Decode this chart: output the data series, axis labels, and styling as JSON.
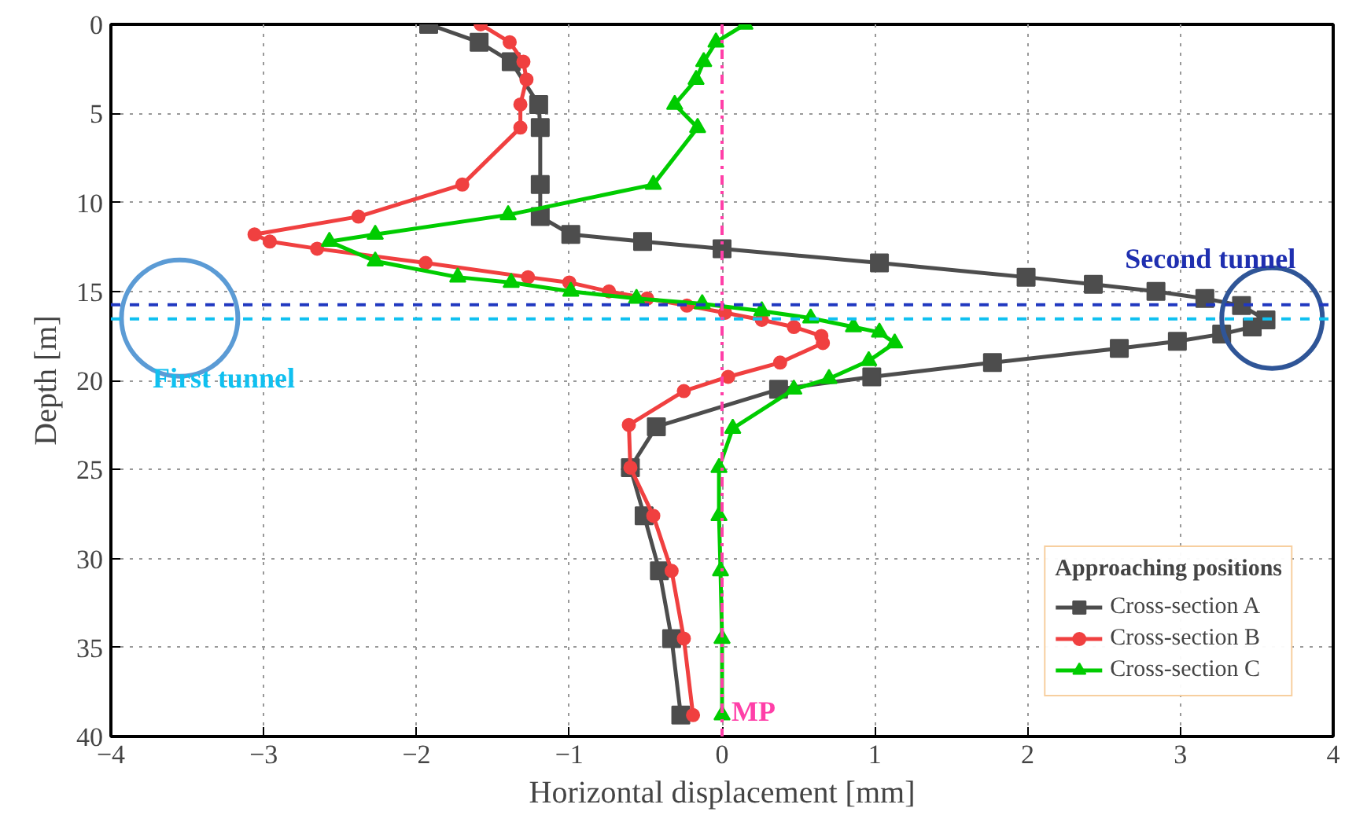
{
  "chart_data": {
    "type": "line",
    "xlabel": "Horizontal displacement [mm]",
    "ylabel": "Depth [m]",
    "legend_title": "Approaching positions",
    "legend": "bottom right",
    "grid": true,
    "line_style": "solid",
    "xlim": [
      -4,
      4
    ],
    "ylim": [
      40,
      0
    ],
    "xticks": [
      -4,
      -3,
      -2,
      -1,
      0,
      1,
      2,
      3,
      4
    ],
    "yticks": [
      0,
      5,
      10,
      15,
      20,
      25,
      30,
      35,
      40
    ],
    "series": [
      {
        "name": "Cross-section A",
        "color": "#4d4d4d",
        "marker": "square",
        "x": [
          -1.92,
          -1.59,
          -1.38,
          -1.2,
          -1.19,
          -1.19,
          -1.19,
          -0.99,
          -0.52,
          0.0,
          1.03,
          1.99,
          2.43,
          2.84,
          3.16,
          3.4,
          3.56,
          3.47,
          3.27,
          2.98,
          2.6,
          1.77,
          0.98,
          0.37,
          -0.43,
          -0.6,
          -0.51,
          -0.41,
          -0.33,
          -0.27
        ],
        "values": [
          0,
          1,
          2.1,
          4.5,
          5.8,
          9,
          10.8,
          11.8,
          12.2,
          12.6,
          13.4,
          14.2,
          14.6,
          15,
          15.4,
          15.8,
          16.6,
          17,
          17.4,
          17.8,
          18.2,
          19,
          19.8,
          20.5,
          22.6,
          24.9,
          27.6,
          30.7,
          34.5,
          38.8
        ]
      },
      {
        "name": "Cross-section B",
        "color": "#f04040",
        "marker": "circle",
        "x": [
          -1.58,
          -1.39,
          -1.3,
          -1.28,
          -1.32,
          -1.32,
          -1.7,
          -2.38,
          -3.06,
          -2.96,
          -2.65,
          -1.94,
          -1.27,
          -1.0,
          -0.74,
          -0.49,
          -0.23,
          0.02,
          0.26,
          0.47,
          0.65,
          0.66,
          0.38,
          0.04,
          -0.25,
          -0.61,
          -0.6,
          -0.45,
          -0.33,
          -0.25,
          -0.19
        ],
        "values": [
          0,
          1,
          2.1,
          3.1,
          4.5,
          5.8,
          9,
          10.8,
          11.8,
          12.2,
          12.6,
          13.4,
          14.2,
          14.5,
          15,
          15.4,
          15.8,
          16.2,
          16.6,
          17,
          17.5,
          17.9,
          19,
          19.8,
          20.6,
          22.5,
          24.9,
          27.6,
          30.7,
          34.5,
          38.8
        ]
      },
      {
        "name": "Cross-section C",
        "color": "#00cc00",
        "marker": "triangle",
        "x": [
          0.15,
          -0.04,
          -0.12,
          -0.17,
          -0.31,
          -0.16,
          -0.45,
          -1.4,
          -2.27,
          -2.57,
          -2.27,
          -1.73,
          -1.38,
          -0.99,
          -0.56,
          -0.13,
          0.26,
          0.58,
          0.86,
          1.03,
          1.13,
          0.96,
          0.7,
          0.47,
          0.07,
          -0.02,
          -0.02,
          -0.01,
          0.0,
          0.0
        ],
        "values": [
          0,
          1,
          2.1,
          3.1,
          4.5,
          5.8,
          9,
          10.7,
          11.8,
          12.2,
          13.3,
          14.2,
          14.5,
          15,
          15.4,
          15.7,
          16.1,
          16.5,
          17,
          17.3,
          17.9,
          18.9,
          19.9,
          20.5,
          22.7,
          24.9,
          27.6,
          30.7,
          34.5,
          38.8
        ]
      }
    ],
    "ref_lines": [
      {
        "axis": "y",
        "value": 15.75,
        "color": "#2038c0",
        "line_style": "dashed"
      },
      {
        "axis": "y",
        "value": 16.55,
        "color": "#10c0f0",
        "line_style": "dashed"
      },
      {
        "axis": "x",
        "value": 0,
        "color": "#ff3fa8",
        "line_style": "dashdot",
        "label": "MP"
      }
    ],
    "annotations": [
      {
        "text": "First tunnel",
        "x": -3.55,
        "y": 16.5
      },
      {
        "text": "Second tunnel",
        "x": 3.6,
        "y": 16.5
      }
    ]
  }
}
